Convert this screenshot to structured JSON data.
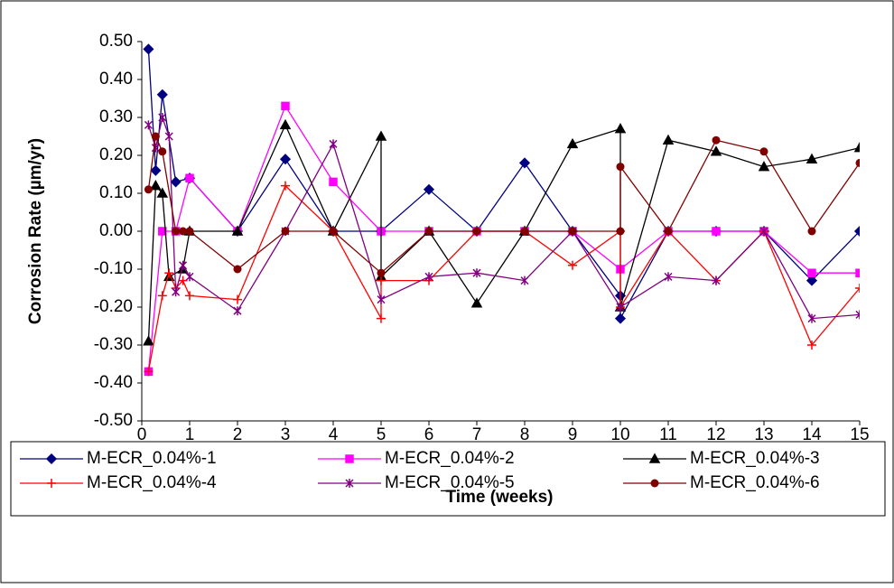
{
  "chart_data": {
    "type": "line",
    "x_label": "Time (weeks)",
    "y_label": "Corrosion Rate (µm/yr)",
    "xlim": [
      0,
      15
    ],
    "xticks": [
      0,
      1,
      2,
      3,
      4,
      5,
      6,
      7,
      8,
      9,
      10,
      11,
      12,
      13,
      14,
      15
    ],
    "ylim": [
      -0.5,
      0.5
    ],
    "yticks": [
      {
        "value": 0.5,
        "label": "0.50"
      },
      {
        "value": 0.4,
        "label": "0.40"
      },
      {
        "value": 0.3,
        "label": "0.30"
      },
      {
        "value": 0.2,
        "label": "0.20"
      },
      {
        "value": 0.1,
        "label": "0.10"
      },
      {
        "value": 0,
        "label": "0.00"
      },
      {
        "value": -0.1,
        "label": "-0.10"
      },
      {
        "value": -0.2,
        "label": "-0.20"
      },
      {
        "value": -0.3,
        "label": "-0.30"
      },
      {
        "value": -0.4,
        "label": "-0.40"
      },
      {
        "value": -0.5,
        "label": "-0.50"
      }
    ],
    "grid": false,
    "legend": "bottom",
    "series": [
      {
        "name": "M-ECR_0.04%-1",
        "color": "#000080",
        "marker": "diamond",
        "x": [
          0.14,
          0.29,
          0.43,
          0.71,
          1,
          2,
          3,
          4,
          5,
          6,
          7,
          8,
          9,
          10,
          10,
          11,
          12,
          13,
          14,
          15
        ],
        "values": [
          0.48,
          0.16,
          0.36,
          0.13,
          0.14,
          0,
          0.19,
          0,
          0,
          0.11,
          0,
          0.18,
          0,
          -0.17,
          -0.23,
          0,
          0,
          0,
          -0.13,
          0
        ]
      },
      {
        "name": "M-ECR_0.04%-2",
        "color": "#ff00ff",
        "marker": "square",
        "x": [
          0.14,
          0.43,
          0.71,
          1,
          2,
          3,
          4,
          5,
          6,
          7,
          8,
          9,
          10,
          11,
          12,
          13,
          14,
          15
        ],
        "values": [
          -0.37,
          0,
          0,
          0.14,
          0,
          0.33,
          0.13,
          0,
          0,
          0,
          0,
          0,
          -0.1,
          0,
          0,
          0,
          -0.11,
          -0.11
        ]
      },
      {
        "name": "M-ECR_0.04%-3",
        "color": "#000000",
        "marker": "triangle",
        "x": [
          0.14,
          0.29,
          0.43,
          0.57,
          0.86,
          1,
          2,
          3,
          4,
          5,
          5,
          6,
          7,
          8,
          9,
          10,
          10,
          11,
          12,
          13,
          14,
          15
        ],
        "values": [
          -0.29,
          0.12,
          0.1,
          -0.12,
          -0.1,
          0,
          0,
          0.28,
          0,
          0.25,
          -0.12,
          0,
          -0.19,
          0,
          0.23,
          0.27,
          -0.2,
          0.24,
          0.21,
          0.17,
          0.19,
          0.22
        ]
      },
      {
        "name": "M-ECR_0.04%-4",
        "color": "#ff0000",
        "marker": "plus",
        "x": [
          0.14,
          0.43,
          0.57,
          0.71,
          0.86,
          1,
          2,
          3,
          4,
          5,
          5,
          6,
          7,
          8,
          9,
          10,
          10,
          11,
          12,
          13,
          14,
          15
        ],
        "values": [
          -0.37,
          -0.17,
          -0.11,
          -0.15,
          -0.13,
          -0.17,
          -0.18,
          0.12,
          0,
          -0.23,
          -0.13,
          -0.13,
          0,
          0,
          -0.09,
          0,
          -0.2,
          0,
          -0.13,
          0,
          -0.3,
          -0.15
        ]
      },
      {
        "name": "M-ECR_0.04%-5",
        "color": "#800080",
        "marker": "star",
        "x": [
          0.14,
          0.29,
          0.43,
          0.57,
          0.71,
          0.86,
          1,
          2,
          3,
          4,
          5,
          6,
          7,
          8,
          9,
          10,
          11,
          12,
          13,
          14,
          15
        ],
        "values": [
          0.28,
          0.22,
          0.3,
          0.25,
          -0.16,
          -0.09,
          -0.12,
          -0.21,
          0,
          0.23,
          -0.18,
          -0.12,
          -0.11,
          -0.13,
          0,
          -0.2,
          -0.12,
          -0.13,
          0,
          -0.23,
          -0.22
        ]
      },
      {
        "name": "M-ECR_0.04%-6",
        "color": "#800000",
        "marker": "circle",
        "x": [
          0.14,
          0.29,
          0.43,
          0.71,
          0.86,
          1,
          2,
          3,
          4,
          5,
          6,
          7,
          8,
          9,
          10,
          10,
          11,
          12,
          13,
          14,
          15
        ],
        "values": [
          0.11,
          0.25,
          0.21,
          0,
          0,
          0,
          -0.1,
          0,
          0,
          -0.11,
          0,
          0,
          0,
          0,
          0,
          0.17,
          0,
          0.24,
          0.21,
          0,
          0.18
        ]
      }
    ]
  }
}
